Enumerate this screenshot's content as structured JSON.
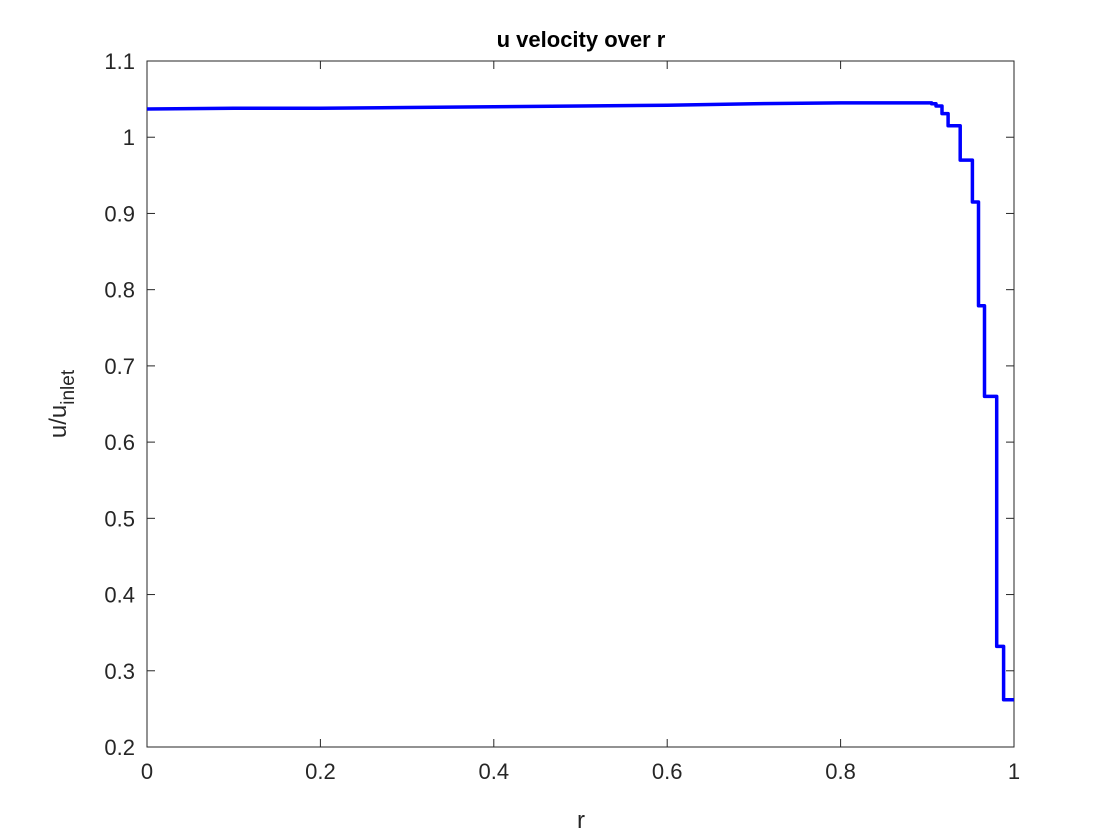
{
  "chart_data": {
    "type": "line",
    "title": "u velocity over r",
    "xlabel": "r",
    "ylabel": {
      "base": "u/u",
      "subscript": "inlet"
    },
    "xlim": [
      0,
      1
    ],
    "ylim": [
      0.2,
      1.1
    ],
    "xticks": [
      0,
      0.2,
      0.4,
      0.6,
      0.8,
      1
    ],
    "xtick_labels": [
      "0",
      "0.2",
      "0.4",
      "0.6",
      "0.8",
      "1"
    ],
    "yticks": [
      0.2,
      0.3,
      0.4,
      0.5,
      0.6,
      0.7,
      0.8,
      0.9,
      1.0,
      1.1
    ],
    "ytick_labels": [
      "0.2",
      "0.3",
      "0.4",
      "0.5",
      "0.6",
      "0.7",
      "0.8",
      "0.9",
      "1",
      "1.1"
    ],
    "grid": false,
    "line_color": "#0000ff",
    "axis_color": "#262626",
    "series": [
      {
        "x": [
          0,
          0.1,
          0.2,
          0.3,
          0.4,
          0.5,
          0.6,
          0.7,
          0.8,
          0.85,
          0.9,
          0.905,
          0.905,
          0.91,
          0.91,
          0.917,
          0.917,
          0.924,
          0.924,
          0.931,
          0.931,
          0.938,
          0.938,
          0.945,
          0.945,
          0.952,
          0.952,
          0.959,
          0.959,
          0.966,
          0.966,
          0.973,
          0.973,
          0.98,
          0.98,
          0.988,
          0.988,
          1.0
        ],
        "y": [
          1.037,
          1.038,
          1.038,
          1.039,
          1.04,
          1.041,
          1.042,
          1.044,
          1.045,
          1.045,
          1.045,
          1.045,
          1.044,
          1.044,
          1.041,
          1.041,
          1.031,
          1.031,
          1.015,
          1.015,
          1.015,
          1.015,
          0.97,
          0.97,
          0.97,
          0.97,
          0.915,
          0.915,
          0.779,
          0.779,
          0.66,
          0.66,
          0.66,
          0.66,
          0.332,
          0.332,
          0.262,
          0.262
        ]
      }
    ]
  }
}
